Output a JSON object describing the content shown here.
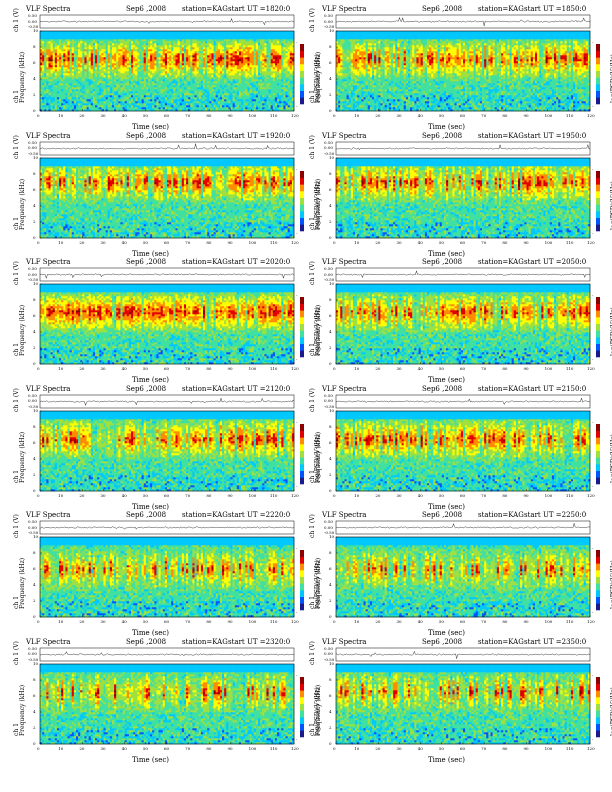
{
  "chart_data": [
    {
      "type": "heatmap",
      "title": "VLF Spectra",
      "date": "Sep6 ,2008",
      "station": "station=KAG",
      "start": "start  UT =1820:0",
      "ylabel": "Frequency (kHz)",
      "channel_label": "ch 1",
      "channel_units": "ch 1 (V)",
      "waveform_ticks": [
        "0.50",
        "0.00",
        "-0.50"
      ],
      "xlabel": "Time (sec)",
      "xlim": [
        0,
        120
      ],
      "ylim": [
        0,
        10
      ],
      "xticks": [
        0,
        10,
        20,
        30,
        40,
        50,
        60,
        70,
        80,
        90,
        100,
        110,
        120
      ],
      "yticks": [
        0,
        2,
        4,
        6,
        8,
        10
      ],
      "colorbar_label": "log(PSD)(V²/Hz)",
      "colorbar_ticks": [
        "-",
        "-"
      ],
      "band_center_khz": 6.5,
      "activity": 0.7
    },
    {
      "type": "heatmap",
      "title": "VLF Spectra",
      "date": "Sep6 ,2008",
      "station": "station=KAG",
      "start": "start  UT =1850:0",
      "ylabel": "Frequency (kHz)",
      "channel_label": "ch 1",
      "channel_units": "ch 1 (V)",
      "waveform_ticks": [
        "0.50",
        "0.00",
        "-0.50"
      ],
      "xlabel": "Time (sec)",
      "xlim": [
        0,
        120
      ],
      "ylim": [
        0,
        10
      ],
      "xticks": [
        0,
        10,
        20,
        30,
        40,
        50,
        60,
        70,
        80,
        90,
        100,
        110,
        120
      ],
      "yticks": [
        0,
        2,
        4,
        6,
        8,
        10
      ],
      "colorbar_label": "log(PSD)(V²/Hz)",
      "colorbar_ticks": [
        "-",
        "-"
      ],
      "band_center_khz": 6.5,
      "activity": 0.7
    },
    {
      "type": "heatmap",
      "title": "VLF Spectra",
      "date": "Sep6 ,2008",
      "station": "station=KAG",
      "start": "start  UT =1920:0",
      "ylabel": "Frequency (kHz)",
      "channel_label": "ch 1",
      "channel_units": "ch 1 (V)",
      "waveform_ticks": [
        "0.50",
        "0.00",
        "-0.50"
      ],
      "xlabel": "Time (sec)",
      "xlim": [
        0,
        120
      ],
      "ylim": [
        0,
        10
      ],
      "xticks": [
        0,
        10,
        20,
        30,
        40,
        50,
        60,
        70,
        80,
        90,
        100,
        110,
        120
      ],
      "yticks": [
        0,
        2,
        4,
        6,
        8,
        10
      ],
      "colorbar_label": "log(PSD)(V²/Hz)",
      "colorbar_ticks": [
        "-",
        "-"
      ],
      "band_center_khz": 7,
      "activity": 0.55
    },
    {
      "type": "heatmap",
      "title": "VLF Spectra",
      "date": "Sep6 ,2008",
      "station": "station=KAG",
      "start": "start  UT =1950:0",
      "ylabel": "Frequency (kHz)",
      "channel_label": "ch 1",
      "channel_units": "ch 1 (V)",
      "waveform_ticks": [
        "0.50",
        "0.00",
        "-0.50"
      ],
      "xlabel": "Time (sec)",
      "xlim": [
        0,
        120
      ],
      "ylim": [
        0,
        10
      ],
      "xticks": [
        0,
        10,
        20,
        30,
        40,
        50,
        60,
        70,
        80,
        90,
        100,
        110,
        120
      ],
      "yticks": [
        0,
        2,
        4,
        6,
        8,
        10
      ],
      "colorbar_label": "log(PSD)(V²/Hz)",
      "colorbar_ticks": [
        "-",
        "-"
      ],
      "band_center_khz": 7,
      "activity": 0.55
    },
    {
      "type": "heatmap",
      "title": "VLF Spectra",
      "date": "Sep6 ,2008",
      "station": "station=KAG",
      "start": "start  UT =2020:0",
      "ylabel": "Frequency (kHz)",
      "channel_label": "ch 1",
      "channel_units": "ch 1 (V)",
      "waveform_ticks": [
        "0.50",
        "0.00",
        "-0.50"
      ],
      "xlabel": "Time (sec)",
      "xlim": [
        0,
        120
      ],
      "ylim": [
        0,
        10
      ],
      "xticks": [
        0,
        10,
        20,
        30,
        40,
        50,
        60,
        70,
        80,
        90,
        100,
        110,
        120
      ],
      "yticks": [
        0,
        2,
        4,
        6,
        8,
        10
      ],
      "colorbar_label": "log(PSD)(V²/Hz)",
      "colorbar_ticks": [
        "-",
        "-"
      ],
      "band_center_khz": 6.5,
      "activity": 0.8
    },
    {
      "type": "heatmap",
      "title": "VLF Spectra",
      "date": "Sep6 ,2008",
      "station": "station=KAG",
      "start": "start  UT =2050:0",
      "ylabel": "Frequency (kHz)",
      "channel_label": "ch 1",
      "channel_units": "ch 1 (V)",
      "waveform_ticks": [
        "0.50",
        "0.00",
        "-0.50"
      ],
      "xlabel": "Time (sec)",
      "xlim": [
        0,
        120
      ],
      "ylim": [
        0,
        10
      ],
      "xticks": [
        0,
        10,
        20,
        30,
        40,
        50,
        60,
        70,
        80,
        90,
        100,
        110,
        120
      ],
      "yticks": [
        0,
        2,
        4,
        6,
        8,
        10
      ],
      "colorbar_label": "log(PSD)(V²/Hz)",
      "colorbar_ticks": [
        "-",
        "-"
      ],
      "band_center_khz": 6.5,
      "activity": 0.65
    },
    {
      "type": "heatmap",
      "title": "VLF Spectra",
      "date": "Sep6 ,2008",
      "station": "station=KAG",
      "start": "start  UT =2120:0",
      "ylabel": "Frequency (kHz)",
      "channel_label": "ch 1",
      "channel_units": "ch 1 (V)",
      "waveform_ticks": [
        "0.50",
        "0.00",
        "-0.50"
      ],
      "xlabel": "Time (sec)",
      "xlim": [
        0,
        120
      ],
      "ylim": [
        0,
        10
      ],
      "xticks": [
        0,
        10,
        20,
        30,
        40,
        50,
        60,
        70,
        80,
        90,
        100,
        110,
        120
      ],
      "yticks": [
        0,
        2,
        4,
        6,
        8,
        10
      ],
      "colorbar_label": "log(PSD)(V²/Hz)",
      "colorbar_ticks": [
        "-",
        "-"
      ],
      "band_center_khz": 6.5,
      "activity": 0.55
    },
    {
      "type": "heatmap",
      "title": "VLF Spectra",
      "date": "Sep6 ,2008",
      "station": "station=KAG",
      "start": "start  UT =2150:0",
      "ylabel": "Frequency (kHz)",
      "channel_label": "ch 1",
      "channel_units": "ch 1 (V)",
      "waveform_ticks": [
        "0.50",
        "0.00",
        "-0.50"
      ],
      "xlabel": "Time (sec)",
      "xlim": [
        0,
        120
      ],
      "ylim": [
        0,
        10
      ],
      "xticks": [
        0,
        10,
        20,
        30,
        40,
        50,
        60,
        70,
        80,
        90,
        100,
        110,
        120
      ],
      "yticks": [
        0,
        2,
        4,
        6,
        8,
        10
      ],
      "colorbar_label": "log(PSD)(V²/Hz)",
      "colorbar_ticks": [
        "-",
        "-"
      ],
      "band_center_khz": 6.5,
      "activity": 0.6
    },
    {
      "type": "heatmap",
      "title": "VLF Spectra",
      "date": "Sep6 ,2008",
      "station": "station=KAG",
      "start": "start  UT =2220:0",
      "ylabel": "Frequency (kHz)",
      "channel_label": "ch 1",
      "channel_units": "ch 1 (V)",
      "waveform_ticks": [
        "0.50",
        "0.00",
        "-0.50"
      ],
      "xlabel": "Time (sec)",
      "xlim": [
        0,
        120
      ],
      "ylim": [
        0,
        10
      ],
      "xticks": [
        0,
        10,
        20,
        30,
        40,
        50,
        60,
        70,
        80,
        90,
        100,
        110,
        120
      ],
      "yticks": [
        0,
        2,
        4,
        6,
        8,
        10
      ],
      "colorbar_label": "log(PSD)(V²/Hz)",
      "colorbar_ticks": [
        "-",
        "-"
      ],
      "band_center_khz": 6,
      "activity": 0.4
    },
    {
      "type": "heatmap",
      "title": "VLF Spectra",
      "date": "Sep6 ,2008",
      "station": "station=KAG",
      "start": "start  UT =2250:0",
      "ylabel": "Frequency (kHz)",
      "channel_label": "ch 1",
      "channel_units": "ch 1 (V)",
      "waveform_ticks": [
        "0.50",
        "0.00",
        "-0.50"
      ],
      "xlabel": "Time (sec)",
      "xlim": [
        0,
        120
      ],
      "ylim": [
        0,
        10
      ],
      "xticks": [
        0,
        10,
        20,
        30,
        40,
        50,
        60,
        70,
        80,
        90,
        100,
        110,
        120
      ],
      "yticks": [
        0,
        2,
        4,
        6,
        8,
        10
      ],
      "colorbar_label": "log(PSD)(V²/Hz)",
      "colorbar_ticks": [
        "-",
        "-"
      ],
      "band_center_khz": 6,
      "activity": 0.4
    },
    {
      "type": "heatmap",
      "title": "VLF Spectra",
      "date": "Sep6 ,2008",
      "station": "station=KAG",
      "start": "start  UT =2320:0",
      "ylabel": "Frequency (kHz)",
      "channel_label": "ch 1",
      "channel_units": "ch 1 (V)",
      "waveform_ticks": [
        "0.50",
        "0.00",
        "-0.50"
      ],
      "xlabel": "Time (sec)",
      "xlim": [
        0,
        120
      ],
      "ylim": [
        0,
        10
      ],
      "xticks": [
        0,
        10,
        20,
        30,
        40,
        50,
        60,
        70,
        80,
        90,
        100,
        110,
        120
      ],
      "yticks": [
        0,
        2,
        4,
        6,
        8,
        10
      ],
      "colorbar_label": "log(PSD)(V²/Hz)",
      "colorbar_ticks": [
        "-",
        "-"
      ],
      "band_center_khz": 6.5,
      "activity": 0.3
    },
    {
      "type": "heatmap",
      "title": "VLF Spectra",
      "date": "Sep6 ,2008",
      "station": "station=KAG",
      "start": "start  UT =2350:0",
      "ylabel": "Frequency (kHz)",
      "channel_label": "ch 1",
      "channel_units": "ch 1 (V)",
      "waveform_ticks": [
        "0.50",
        "0.00",
        "-0.50"
      ],
      "xlabel": "Time (sec)",
      "xlim": [
        0,
        120
      ],
      "ylim": [
        0,
        10
      ],
      "xticks": [
        0,
        10,
        20,
        30,
        40,
        50,
        60,
        70,
        80,
        90,
        100,
        110,
        120
      ],
      "yticks": [
        0,
        2,
        4,
        6,
        8,
        10
      ],
      "colorbar_label": "log(PSD)(V²/Hz)",
      "colorbar_ticks": [
        "-",
        "-"
      ],
      "band_center_khz": 6.5,
      "activity": 0.3
    }
  ],
  "colors": {
    "background": "#ffffff",
    "axis": "#000000",
    "colormap": [
      "#1a1a8c",
      "#0055ff",
      "#00c8ff",
      "#40e0a0",
      "#9fe03f",
      "#ffff00",
      "#ff8c00",
      "#e00000",
      "#8c0000"
    ]
  }
}
